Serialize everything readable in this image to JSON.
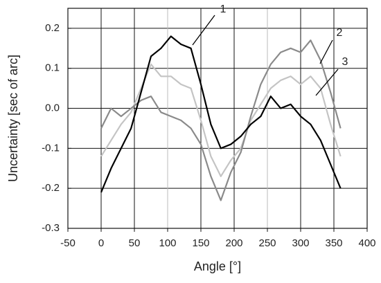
{
  "chart_data": {
    "type": "line",
    "x_label": "Angle [°]",
    "y_label": "Uncertainty [sec of arc]",
    "x": [
      0,
      15,
      30,
      45,
      60,
      75,
      90,
      105,
      120,
      135,
      150,
      165,
      180,
      195,
      210,
      225,
      240,
      255,
      270,
      285,
      300,
      315,
      330,
      345,
      360
    ],
    "series": [
      {
        "name": "1",
        "color": "#000000",
        "values": [
          -0.21,
          -0.15,
          -0.1,
          -0.05,
          0.04,
          0.13,
          0.15,
          0.18,
          0.16,
          0.15,
          0.06,
          -0.04,
          -0.1,
          -0.09,
          -0.07,
          -0.04,
          -0.02,
          0.03,
          0.0,
          0.01,
          -0.02,
          -0.04,
          -0.08,
          -0.14,
          -0.2
        ]
      },
      {
        "name": "2",
        "color": "#8a8a8a",
        "values": [
          -0.05,
          0.0,
          -0.02,
          0.0,
          0.02,
          0.03,
          -0.01,
          -0.02,
          -0.03,
          -0.05,
          -0.09,
          -0.17,
          -0.23,
          -0.16,
          -0.11,
          -0.02,
          0.06,
          0.11,
          0.14,
          0.15,
          0.14,
          0.17,
          0.12,
          0.04,
          -0.05
        ]
      },
      {
        "name": "3",
        "color": "#c4c4c4",
        "values": [
          -0.12,
          -0.08,
          -0.04,
          -0.01,
          0.05,
          0.11,
          0.08,
          0.08,
          0.06,
          0.05,
          -0.03,
          -0.12,
          -0.17,
          -0.13,
          -0.1,
          -0.03,
          0.01,
          0.05,
          0.07,
          0.08,
          0.06,
          0.08,
          0.05,
          -0.04,
          -0.12
        ]
      }
    ],
    "xlim": [
      -50,
      400
    ],
    "xticks": [
      -50,
      0,
      50,
      100,
      150,
      200,
      250,
      300,
      350,
      400
    ],
    "ylim": [
      -0.3,
      0.25
    ],
    "yticks": [
      -0.3,
      -0.2,
      -0.1,
      {
        "value": 0,
        "label": "0.0"
      },
      0.1,
      0.2
    ],
    "grid": true
  }
}
